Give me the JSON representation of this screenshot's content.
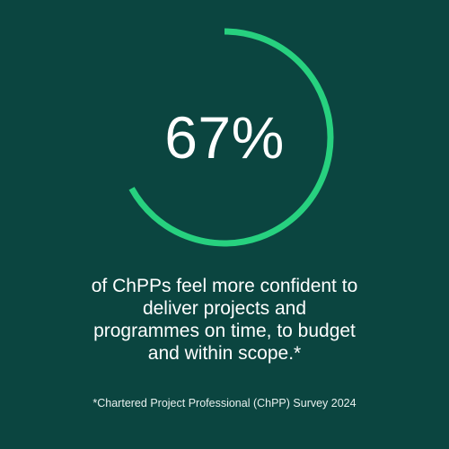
{
  "chart_data": {
    "type": "pie",
    "style": "donut-progress-ring",
    "value": 67,
    "label": "67%",
    "max": 100,
    "colors": {
      "background": "#0b4540",
      "ring": "#27d17f",
      "text": "#ffffff"
    }
  },
  "caption": "of ChPPs feel more confident to\ndeliver projects and\nprogrammes on time, to budget\nand within scope.*",
  "footnote": "*Chartered Project Professional (ChPP) Survey 2024"
}
